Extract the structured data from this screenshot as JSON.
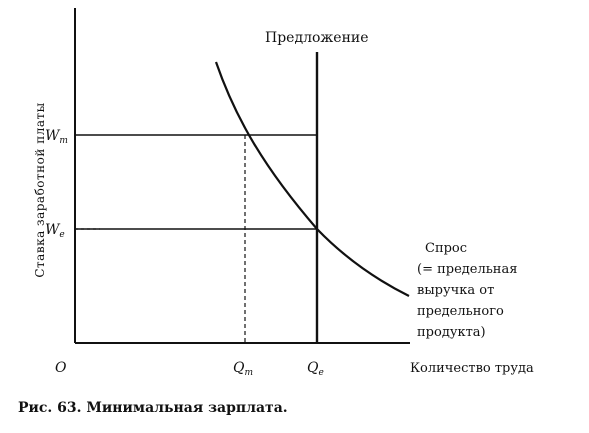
{
  "diagram": {
    "ylabel": "Ставка заработной платы",
    "xlabel": "Количество труда",
    "origin": "O",
    "supply_label": "Предложение",
    "demand_label_lines": [
      "Спрос",
      "(= предельная",
      "выручка от",
      "предельного",
      "продукта)"
    ],
    "y_ticks": {
      "wm": {
        "main": "W",
        "sub": "m"
      },
      "we": {
        "main": "W",
        "sub": "e"
      }
    },
    "x_ticks": {
      "qm": {
        "main": "Q",
        "sub": "m"
      },
      "qe": {
        "main": "Q",
        "sub": "e"
      }
    }
  },
  "caption": "Рис. 63. Минимальная зарплата."
}
